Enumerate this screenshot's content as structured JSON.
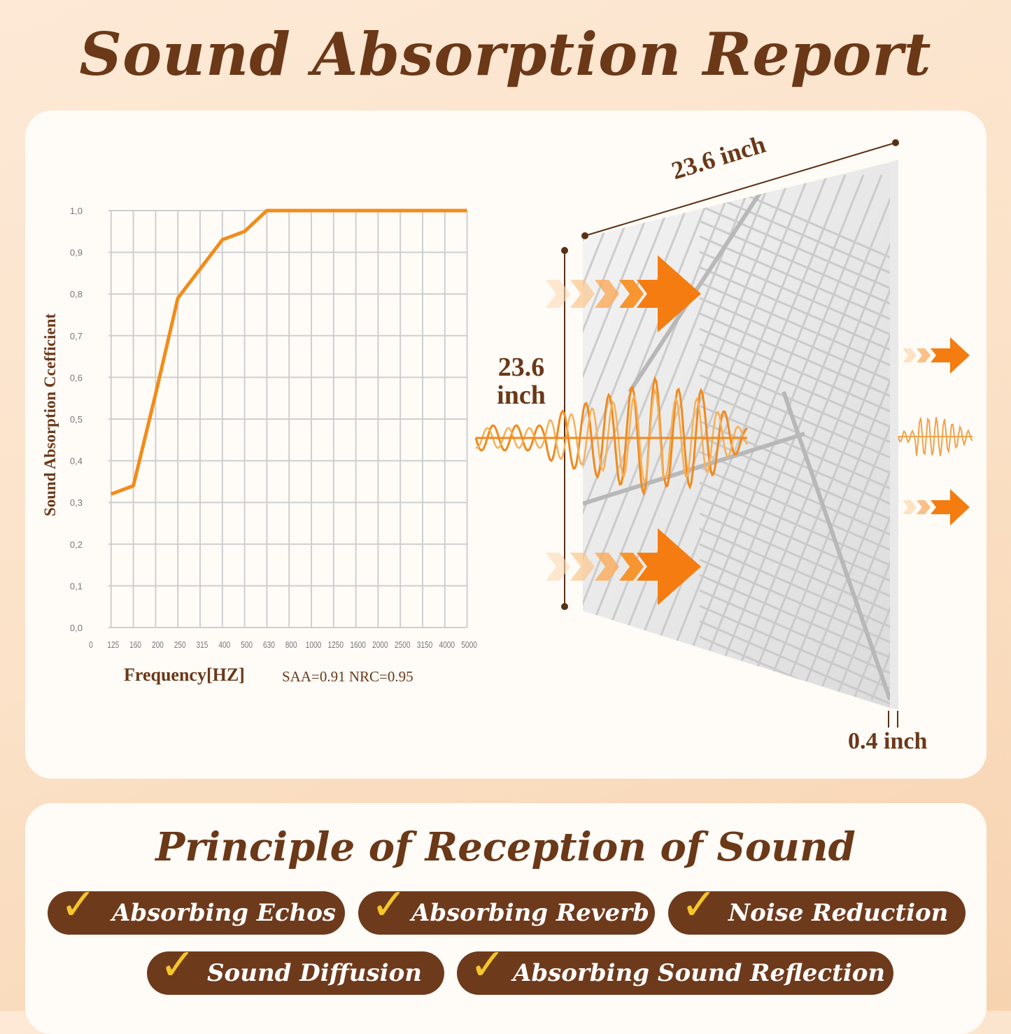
{
  "header": {
    "title": "Sound Absorption Report"
  },
  "chart_data": {
    "type": "line",
    "ylabel": "Sound Absorption Ccefficient",
    "xlabel": "Frequency[HZ]",
    "x_ticks": [
      "0",
      "125",
      "160",
      "200",
      "250",
      "315",
      "400",
      "500",
      "630",
      "800",
      "1000",
      "1250",
      "1600",
      "2000",
      "2500",
      "3150",
      "4000",
      "5000"
    ],
    "y_ticks": [
      "0,0",
      "0,1",
      "0,2",
      "0,3",
      "0,4",
      "0,5",
      "0,6",
      "0,7",
      "0,8",
      "0,9",
      "1,0"
    ],
    "ylim": [
      0,
      1.0
    ],
    "grid": true,
    "series": [
      {
        "x": [
          "125",
          "160",
          "200",
          "250",
          "315",
          "400",
          "500",
          "630",
          "800",
          "1000",
          "1250",
          "1600",
          "2000",
          "2500",
          "3150",
          "4000",
          "5000"
        ],
        "values": [
          0.32,
          0.34,
          0.56,
          0.79,
          0.86,
          0.93,
          0.95,
          1.0,
          1.0,
          1.0,
          1.0,
          1.0,
          1.0,
          1.0,
          1.0,
          1.0,
          1.0
        ],
        "color": "#f28c1a"
      }
    ],
    "stats": "SAA=0.91 NRC=0.95"
  },
  "panel": {
    "width_label": "23.6 inch",
    "height_label_1": "23.6",
    "height_label_2": "inch",
    "thickness_label": "0.4 inch"
  },
  "principles": {
    "title": "Principle of Reception of Sound",
    "items": [
      "Absorbing Echos",
      "Absorbing Reverb",
      "Noise Reduction",
      "Sound Diffusion",
      "Absorbing Sound Reflection"
    ]
  },
  "colors": {
    "brown": "#6e3a1c",
    "orange": "#f28c1a",
    "check": "#f5c62a"
  }
}
